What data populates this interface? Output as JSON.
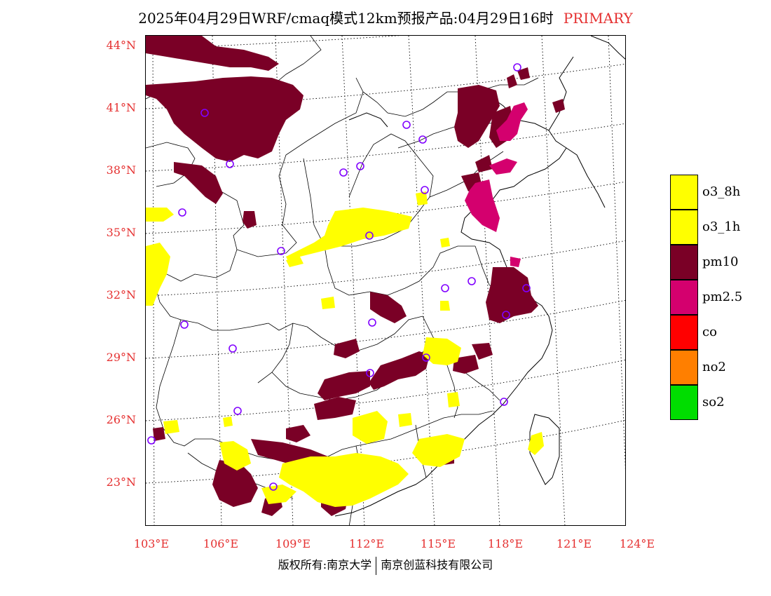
{
  "header": {
    "title": "2025年04月29日WRF/cmaq模式12km预报产品:04月29日16时",
    "primary_label": "PRIMARY"
  },
  "axes": {
    "lat_labels": [
      "44°N",
      "41°N",
      "38°N",
      "35°N",
      "32°N",
      "29°N",
      "26°N",
      "23°N"
    ],
    "lon_labels": [
      "103°E",
      "106°E",
      "109°E",
      "112°E",
      "115°E",
      "118°E",
      "121°E",
      "124°E"
    ]
  },
  "legend": {
    "items": [
      {
        "label": "o3_8h",
        "color": "#ffff00"
      },
      {
        "label": "o3_1h",
        "color": "#ffff00"
      },
      {
        "label": "pm10",
        "color": "#7a0026"
      },
      {
        "label": "pm2.5",
        "color": "#d4006e"
      },
      {
        "label": "co",
        "color": "#ff0000"
      },
      {
        "label": "no2",
        "color": "#ff7f00"
      },
      {
        "label": "so2",
        "color": "#00dd00"
      }
    ]
  },
  "colors": {
    "label_red": "#e53030",
    "pm10": "#7a0026",
    "pm25": "#d4006e",
    "o3": "#ffff00",
    "station_marker": "#8000ff"
  },
  "footer": {
    "left": "版权所有:南京大学",
    "right": "南京创蓝科技有限公司"
  }
}
